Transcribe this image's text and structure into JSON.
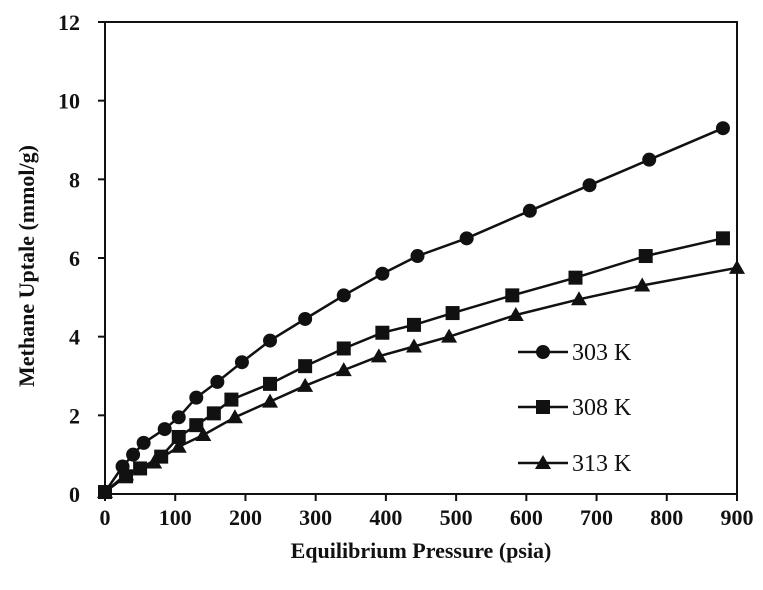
{
  "chart_data": {
    "type": "line",
    "title": "",
    "xlabel": "Equilibrium Pressure (psia)",
    "ylabel": "Methane Uptale (mmol/g)",
    "xlim": [
      0,
      900
    ],
    "ylim": [
      0,
      12
    ],
    "xticks": [
      0,
      100,
      200,
      300,
      400,
      500,
      600,
      700,
      800,
      900
    ],
    "yticks": [
      0,
      2,
      4,
      6,
      8,
      10,
      12
    ],
    "grid": false,
    "legend_position": "lower-right",
    "series": [
      {
        "name": "303 K",
        "marker": "circle",
        "color": "#111111",
        "points": [
          [
            0,
            0.05
          ],
          [
            25,
            0.7
          ],
          [
            40,
            1.0
          ],
          [
            55,
            1.3
          ],
          [
            85,
            1.65
          ],
          [
            105,
            1.95
          ],
          [
            130,
            2.45
          ],
          [
            160,
            2.85
          ],
          [
            195,
            3.35
          ],
          [
            235,
            3.9
          ],
          [
            285,
            4.45
          ],
          [
            340,
            5.05
          ],
          [
            395,
            5.6
          ],
          [
            445,
            6.05
          ],
          [
            515,
            6.5
          ],
          [
            605,
            7.2
          ],
          [
            690,
            7.85
          ],
          [
            775,
            8.5
          ],
          [
            880,
            9.3
          ]
        ]
      },
      {
        "name": "308 K",
        "marker": "square",
        "color": "#111111",
        "points": [
          [
            0,
            0.05
          ],
          [
            30,
            0.45
          ],
          [
            50,
            0.65
          ],
          [
            80,
            0.95
          ],
          [
            105,
            1.45
          ],
          [
            130,
            1.75
          ],
          [
            155,
            2.05
          ],
          [
            180,
            2.4
          ],
          [
            235,
            2.8
          ],
          [
            285,
            3.25
          ],
          [
            340,
            3.7
          ],
          [
            395,
            4.1
          ],
          [
            440,
            4.3
          ],
          [
            495,
            4.6
          ],
          [
            580,
            5.05
          ],
          [
            670,
            5.5
          ],
          [
            770,
            6.05
          ],
          [
            880,
            6.5
          ]
        ]
      },
      {
        "name": "313 K",
        "marker": "triangle",
        "color": "#111111",
        "points": [
          [
            0,
            0.05
          ],
          [
            30,
            0.5
          ],
          [
            70,
            0.8
          ],
          [
            105,
            1.2
          ],
          [
            140,
            1.5
          ],
          [
            185,
            1.95
          ],
          [
            235,
            2.35
          ],
          [
            285,
            2.75
          ],
          [
            340,
            3.15
          ],
          [
            390,
            3.5
          ],
          [
            440,
            3.75
          ],
          [
            490,
            4.0
          ],
          [
            585,
            4.55
          ],
          [
            675,
            4.95
          ],
          [
            765,
            5.3
          ],
          [
            900,
            5.75
          ]
        ]
      }
    ]
  }
}
